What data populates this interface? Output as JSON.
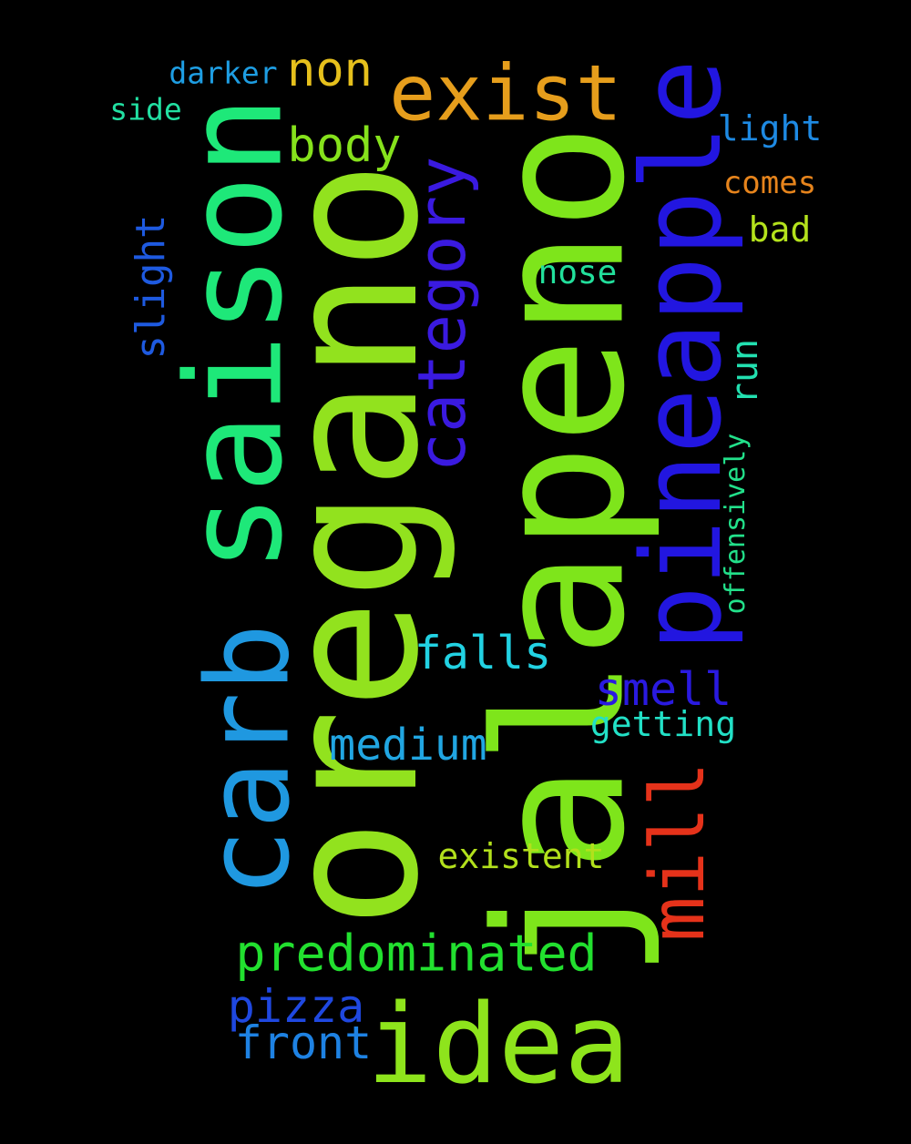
{
  "cloud": {
    "background": "#000000",
    "words": {
      "oregano": {
        "text": "oregano",
        "color": "#92e21e"
      },
      "jalapeno": {
        "text": "jalapeno",
        "color": "#7ee51b"
      },
      "saison": {
        "text": "saison",
        "color": "#1ee879"
      },
      "pineapple": {
        "text": "pineapple",
        "color": "#2216e0"
      },
      "carb": {
        "text": "carb",
        "color": "#1f98e0"
      },
      "idea": {
        "text": "idea",
        "color": "#8ee41c"
      },
      "exist": {
        "text": "exist",
        "color": "#e69e1c"
      },
      "mill": {
        "text": "mill",
        "color": "#e5321a"
      },
      "category": {
        "text": "category",
        "color": "#3a1ae0"
      },
      "predominated": {
        "text": "predominated",
        "color": "#22e02f"
      },
      "non": {
        "text": "non",
        "color": "#e6c01c"
      },
      "body": {
        "text": "body",
        "color": "#86e21c"
      },
      "falls": {
        "text": "falls",
        "color": "#22d2e3"
      },
      "smell": {
        "text": "smell",
        "color": "#2a1ae0"
      },
      "medium": {
        "text": "medium",
        "color": "#21a6e2"
      },
      "pizza": {
        "text": "pizza",
        "color": "#1f48e0"
      },
      "front": {
        "text": "front",
        "color": "#1e82e3"
      },
      "slight": {
        "text": "slight",
        "color": "#1e5ae0"
      },
      "run": {
        "text": "run",
        "color": "#22e0b0"
      },
      "getting": {
        "text": "getting",
        "color": "#22e0c6"
      },
      "existent": {
        "text": "existent",
        "color": "#b2e01c"
      },
      "light": {
        "text": "light",
        "color": "#1e8ae3"
      },
      "comes": {
        "text": "comes",
        "color": "#e6841c"
      },
      "bad": {
        "text": "bad",
        "color": "#b4e21c"
      },
      "nose": {
        "text": "nose",
        "color": "#22e09c"
      },
      "offensively": {
        "text": "offensively",
        "color": "#22e08a"
      },
      "darker": {
        "text": "darker",
        "color": "#1e9ee3"
      },
      "side": {
        "text": "side",
        "color": "#22e0a2"
      }
    }
  }
}
